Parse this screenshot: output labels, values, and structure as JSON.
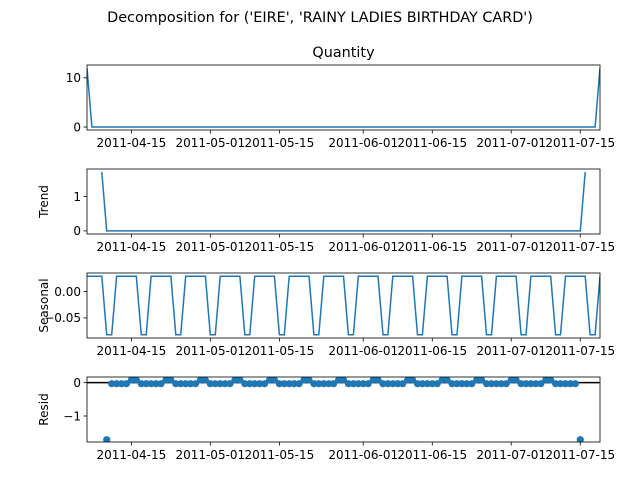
{
  "figure_title": "Decomposition for ('EIRE', 'RAINY LADIES BIRTHDAY CARD')",
  "chart_data": [
    {
      "type": "line",
      "title": "Quantity",
      "xlabel": "",
      "ylabel": "",
      "x_range": [
        "2011-04-06",
        "2011-07-19"
      ],
      "ylim": [
        -0.6,
        12.6
      ],
      "yticks": [
        0,
        10
      ],
      "xticks": [
        "2011-04-15",
        "2011-05-01",
        "2011-05-15",
        "2011-06-01",
        "2011-06-15",
        "2011-07-01",
        "2011-07-15"
      ],
      "color": "#1f77b4",
      "series": [
        {
          "points": [
            [
              "2011-04-06",
              12.0
            ],
            [
              "2011-04-07",
              0.0
            ],
            [
              "2011-07-18",
              0.0
            ],
            [
              "2011-07-19",
              12.0
            ]
          ]
        }
      ]
    },
    {
      "type": "line",
      "title": "",
      "xlabel": "",
      "ylabel": "Trend",
      "x_range": [
        "2011-04-06",
        "2011-07-19"
      ],
      "ylim": [
        -0.09,
        1.8
      ],
      "yticks": [
        0,
        1
      ],
      "xticks": [
        "2011-04-15",
        "2011-05-01",
        "2011-05-15",
        "2011-06-01",
        "2011-06-15",
        "2011-07-01",
        "2011-07-15"
      ],
      "color": "#1f77b4",
      "series": [
        {
          "points": [
            [
              "2011-04-09",
              1.71
            ],
            [
              "2011-04-10",
              0.0
            ],
            [
              "2011-07-15",
              0.0
            ],
            [
              "2011-07-16",
              1.71
            ]
          ]
        }
      ]
    },
    {
      "type": "line",
      "title": "",
      "xlabel": "",
      "ylabel": "Seasonal",
      "x_range": [
        "2011-04-06",
        "2011-07-19"
      ],
      "ylim": [
        -0.088,
        0.035
      ],
      "yticks": [
        0.0,
        -0.05
      ],
      "ytick_labels": [
        "0.00",
        "−0.05"
      ],
      "xticks": [
        "2011-04-15",
        "2011-05-01",
        "2011-05-15",
        "2011-06-01",
        "2011-06-15",
        "2011-07-01",
        "2011-07-15"
      ],
      "color": "#1f77b4",
      "period_days": 7,
      "pattern": [
        0.029,
        0.029,
        0.029,
        0.029,
        -0.082,
        -0.082,
        0.029
      ],
      "series_start": "2011-04-06",
      "series_end": "2011-07-19"
    },
    {
      "type": "scatter",
      "title": "",
      "xlabel": "",
      "ylabel": "Resid",
      "x_range": [
        "2011-04-06",
        "2011-07-19"
      ],
      "ylim": [
        -1.78,
        0.17
      ],
      "yticks": [
        0,
        -1
      ],
      "ytick_labels": [
        "0",
        "−1"
      ],
      "xticks": [
        "2011-04-15",
        "2011-05-01",
        "2011-05-15",
        "2011-06-01",
        "2011-06-15",
        "2011-07-01",
        "2011-07-15"
      ],
      "color": "#1f77b4",
      "baseline": 0,
      "outliers": [
        [
          "2011-04-10",
          -1.71
        ],
        [
          "2011-07-15",
          -1.71
        ]
      ],
      "series_start": "2011-04-11",
      "series_end": "2011-07-14",
      "period_days": 7,
      "pattern": [
        -0.03,
        -0.03,
        -0.03,
        -0.03,
        0.08,
        0.08,
        -0.03
      ]
    }
  ]
}
